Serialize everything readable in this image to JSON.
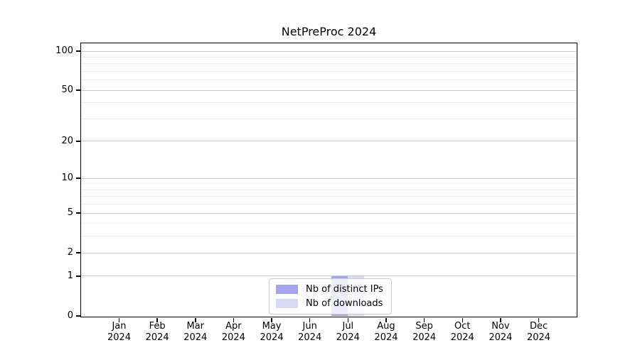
{
  "colors": {
    "background": "#ffffff",
    "axis": "#000000",
    "grid_major": "#c9c9c9",
    "grid_minor": "#efefef",
    "legend_border": "#cccccc",
    "distinct_ips": "#a5a5ed",
    "downloads": "#d9d9f6"
  },
  "chart_data": {
    "type": "bar",
    "title": "NetPreProc 2024",
    "categories": [
      "Jan",
      "Feb",
      "Mar",
      "Apr",
      "May",
      "Jun",
      "Jul",
      "Aug",
      "Sep",
      "Oct",
      "Nov",
      "Dec"
    ],
    "year": "2024",
    "series": [
      {
        "name": "Nb of distinct IPs",
        "color": "#a5a5ed",
        "values": [
          0,
          0,
          0,
          0,
          0,
          0,
          1,
          0,
          0,
          0,
          0,
          0
        ]
      },
      {
        "name": "Nb of downloads",
        "color": "#d9d9f6",
        "values": [
          0,
          0,
          0,
          0,
          0,
          0,
          1,
          0,
          0,
          0,
          0,
          0
        ]
      }
    ],
    "xlabel": "",
    "ylabel": "",
    "y_axis": {
      "scale": "log1p",
      "major_ticks": [
        0,
        1,
        2,
        5,
        10,
        20,
        50,
        100
      ],
      "minor_gridlines": [
        3,
        4,
        6,
        7,
        8,
        9,
        30,
        40,
        60,
        70,
        80,
        90
      ],
      "lim": [
        0,
        100
      ]
    },
    "grid": "horizontal",
    "legend_position": "lower center"
  }
}
